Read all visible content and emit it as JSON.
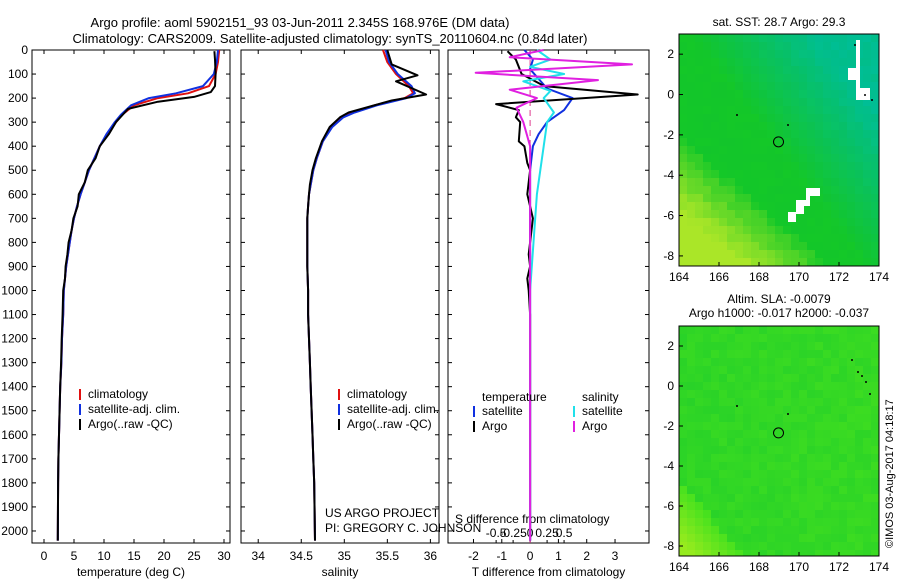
{
  "title_line1": "Argo profile: aoml 5902151_93 03-Jun-2011 2.345S 168.976E (DM data)",
  "title_line2": "Climatology: CARS2009. Satellite-adjusted climatology: synTS_20110604.nc (0.84d later)",
  "credit_line1": "US ARGO PROJECT",
  "credit_line2": "PI: GREGORY C. JOHNSON",
  "watermark": "©IMOS 03-Aug-2017 04:18:17",
  "colors": {
    "climatology": "#e01010",
    "satellite": "#1030e0",
    "argo": "#000000",
    "sal_sat": "#20e0ea",
    "sal_argo": "#e020e0"
  },
  "chart_data": [
    {
      "type": "line",
      "name": "temperature-profile",
      "xlabel": "temperature (deg C)",
      "xlim": [
        -2,
        31
      ],
      "ylim": [
        0,
        2050
      ],
      "xticks": [
        0,
        5,
        10,
        15,
        20,
        25,
        30
      ],
      "yticks": [
        0,
        100,
        200,
        300,
        400,
        500,
        600,
        700,
        800,
        900,
        1000,
        1100,
        1200,
        1300,
        1400,
        1500,
        1600,
        1700,
        1800,
        1900,
        2000
      ],
      "legend": [
        "climatology",
        "satellite-adj. clim.",
        "Argo(..raw -QC)"
      ],
      "series": [
        {
          "name": "climatology",
          "color": "#e01010",
          "x": [
            29.2,
            29.0,
            28.6,
            27.5,
            24,
            19,
            15,
            13,
            12,
            10.5,
            9.3,
            8.4,
            7.5,
            6.8,
            6.1,
            5.5,
            5.0,
            4.6,
            4.3,
            4.0,
            3.7,
            3.5,
            3.3,
            3.2,
            3.0,
            2.9,
            2.7,
            2.6,
            2.5,
            2.4,
            2.35,
            2.3
          ],
          "y": [
            0,
            50,
            100,
            150,
            180,
            200,
            230,
            270,
            300,
            350,
            400,
            450,
            500,
            550,
            600,
            650,
            700,
            750,
            800,
            850,
            900,
            950,
            1000,
            1100,
            1200,
            1300,
            1400,
            1500,
            1600,
            1700,
            1800,
            2040
          ]
        },
        {
          "name": "satellite",
          "color": "#1030e0",
          "x": [
            29.0,
            28.8,
            28.3,
            26.5,
            22,
            17.5,
            14.5,
            12.8,
            11.8,
            10.4,
            9.3,
            8.4,
            7.5,
            6.8,
            6.1,
            5.5,
            5.0,
            4.6,
            4.3,
            4.0,
            3.7,
            3.5,
            3.3,
            3.2,
            3.0,
            2.9,
            2.7,
            2.6,
            2.5,
            2.4,
            2.35,
            2.3
          ],
          "y": [
            0,
            50,
            100,
            150,
            180,
            200,
            230,
            270,
            300,
            350,
            400,
            450,
            500,
            550,
            600,
            650,
            700,
            750,
            800,
            850,
            900,
            950,
            1000,
            1100,
            1200,
            1300,
            1400,
            1500,
            1600,
            1700,
            1800,
            2040
          ]
        },
        {
          "name": "argo",
          "color": "#000000",
          "x": [
            28.4,
            28.5,
            28.6,
            28.5,
            27.8,
            25,
            19,
            14,
            12,
            10.8,
            9.3,
            8.6,
            7.3,
            6.8,
            5.8,
            5.6,
            4.9,
            4.6,
            4.1,
            3.9,
            3.6,
            3.5,
            3.2,
            3.1,
            2.95,
            2.85,
            2.7,
            2.6,
            2.5,
            2.4,
            2.35,
            2.3
          ],
          "y": [
            5,
            40,
            100,
            150,
            175,
            195,
            215,
            245,
            300,
            350,
            400,
            450,
            500,
            550,
            600,
            650,
            700,
            750,
            800,
            850,
            900,
            950,
            1000,
            1100,
            1200,
            1300,
            1400,
            1500,
            1600,
            1700,
            1800,
            2040
          ]
        }
      ]
    },
    {
      "type": "line",
      "name": "salinity-profile",
      "xlabel": "salinity",
      "xlim": [
        33.8,
        36.1
      ],
      "ylim": [
        0,
        2050
      ],
      "xticks": [
        34,
        34.5,
        35,
        35.5,
        36
      ],
      "xticklabels": [
        "34",
        "34.5",
        "35",
        "35.5",
        "36"
      ],
      "legend": [
        "climatology",
        "satellite-adj. clim.",
        "Argo(..raw -QC)"
      ],
      "series": [
        {
          "name": "climatology",
          "color": "#e01010",
          "x": [
            35.45,
            35.5,
            35.6,
            35.75,
            35.8,
            35.7,
            35.35,
            35.1,
            34.98,
            34.85,
            34.75,
            34.68,
            34.64,
            34.61,
            34.59,
            34.58,
            34.57,
            34.57,
            34.57,
            34.58,
            34.58,
            34.59,
            34.6,
            34.61,
            34.62,
            34.63,
            34.64,
            34.65,
            34.66
          ],
          "y": [
            0,
            50,
            100,
            150,
            180,
            200,
            230,
            260,
            280,
            320,
            380,
            450,
            500,
            560,
            600,
            650,
            700,
            800,
            900,
            1000,
            1100,
            1200,
            1300,
            1400,
            1500,
            1600,
            1700,
            1800,
            2040
          ]
        },
        {
          "name": "satellite",
          "color": "#1030e0",
          "x": [
            35.48,
            35.52,
            35.62,
            35.78,
            35.82,
            35.72,
            35.38,
            35.12,
            34.99,
            34.86,
            34.75,
            34.68,
            34.64,
            34.61,
            34.59,
            34.58,
            34.57,
            34.57,
            34.57,
            34.58,
            34.58,
            34.59,
            34.6,
            34.61,
            34.62,
            34.63,
            34.64,
            34.65,
            34.66
          ],
          "y": [
            0,
            50,
            100,
            150,
            180,
            200,
            230,
            260,
            280,
            320,
            380,
            450,
            500,
            560,
            600,
            650,
            700,
            800,
            900,
            1000,
            1100,
            1200,
            1300,
            1400,
            1500,
            1600,
            1700,
            1800,
            2040
          ]
        },
        {
          "name": "argo",
          "color": "#000000",
          "x": [
            35.5,
            35.55,
            35.85,
            35.6,
            35.95,
            35.55,
            35.3,
            35.05,
            34.95,
            34.83,
            34.74,
            34.67,
            34.63,
            34.6,
            34.59,
            34.58,
            34.57,
            34.57,
            34.57,
            34.58,
            34.58,
            34.59,
            34.6,
            34.61,
            34.62,
            34.63,
            34.64,
            34.65,
            34.66
          ],
          "y": [
            0,
            60,
            105,
            130,
            185,
            210,
            235,
            260,
            280,
            320,
            380,
            450,
            500,
            560,
            600,
            650,
            700,
            800,
            900,
            1000,
            1100,
            1200,
            1300,
            1400,
            1500,
            1600,
            1700,
            1800,
            2040
          ]
        }
      ]
    },
    {
      "type": "line",
      "name": "difference-profile",
      "xlabel_top": "S difference from climatology",
      "xlabel": "T difference from climatology",
      "xlim": [
        -2.9,
        4.2
      ],
      "ylim": [
        0,
        2050
      ],
      "xticks": [
        -2,
        -1,
        0,
        1,
        2,
        3
      ],
      "xticklabels": [
        "-2",
        "-1",
        "0",
        "1",
        "2",
        "3"
      ],
      "sticks": [
        -0.5,
        -0.25,
        0,
        0.25,
        0.5
      ],
      "sticklabels": [
        "-0.5",
        "-0.25",
        "0",
        "0.25",
        "0.5"
      ],
      "legend_headers": [
        "temperature",
        "salinity"
      ],
      "legend": [
        "satellite",
        "Argo",
        "satellite",
        "Argo"
      ],
      "series": [
        {
          "name": "T satellite",
          "color": "#1030e0",
          "x": [
            -0.2,
            0.1,
            0,
            0.3,
            0.6,
            1.5,
            1.2,
            0.6,
            0.3,
            0.1,
            0.0,
            0.0,
            0.0,
            0.0,
            0.0,
            0.0,
            0.0,
            0.0
          ],
          "y": [
            0,
            40,
            80,
            120,
            160,
            200,
            250,
            300,
            350,
            400,
            500,
            600,
            800,
            1000,
            1200,
            1500,
            1800,
            2040
          ]
        },
        {
          "name": "T argo",
          "color": "#000000",
          "x": [
            -0.8,
            -0.5,
            -0.3,
            0.5,
            3.8,
            -1.2,
            -0.4,
            -0.5,
            -0.35,
            -0.4,
            -0.2,
            -0.1,
            0.0,
            -0.1,
            0.1,
            0.0,
            -0.05,
            0.0,
            -0.1,
            -0.05,
            0.0,
            0.0,
            0.0,
            0.0,
            0.0
          ],
          "y": [
            5,
            40,
            100,
            150,
            185,
            225,
            250,
            280,
            300,
            380,
            400,
            470,
            500,
            600,
            700,
            800,
            850,
            900,
            950,
            1000,
            1100,
            1200,
            1500,
            1800,
            2040
          ]
        },
        {
          "name": "S satellite",
          "color": "#20e0ea",
          "x": [
            0.1,
            0.3,
            0.0,
            0.5,
            -0.1,
            0.3,
            0.2,
            0.35,
            0.25,
            0.2,
            0.15,
            0.1,
            0.05,
            0.0,
            0.0,
            0.0
          ],
          "y": [
            0,
            40,
            70,
            100,
            130,
            170,
            200,
            260,
            300,
            400,
            500,
            600,
            800,
            1000,
            1500,
            2040
          ]
        },
        {
          "name": "S argo",
          "color": "#e020e0",
          "x": [
            0.2,
            -0.3,
            1.5,
            -0.8,
            1.0,
            -0.3,
            0.1,
            -0.2,
            -0.1,
            0.0,
            0.0,
            0.0,
            0.0
          ],
          "y": [
            0,
            30,
            60,
            95,
            125,
            165,
            200,
            240,
            300,
            400,
            600,
            1000,
            2040
          ]
        }
      ]
    },
    {
      "type": "heatmap",
      "name": "sst-map",
      "title": "sat. SST: 28.7 Argo: 29.3",
      "xlim": [
        164,
        174
      ],
      "ylim": [
        -8.5,
        3
      ],
      "xticks": [
        164,
        166,
        168,
        170,
        172,
        174
      ],
      "yticks": [
        2,
        0,
        -2,
        -4,
        -6,
        -8
      ],
      "profile_marker": [
        168.976,
        -2.345
      ]
    },
    {
      "type": "heatmap",
      "name": "sla-map",
      "title": "Altim. SLA: -0.0079",
      "subtitle": "Argo h1000: -0.017 h2000: -0.037",
      "xlim": [
        164,
        174
      ],
      "ylim": [
        -8.5,
        3
      ],
      "xticks": [
        164,
        166,
        168,
        170,
        172,
        174
      ],
      "yticks": [
        2,
        0,
        -2,
        -4,
        -6,
        -8
      ],
      "profile_marker": [
        168.976,
        -2.345
      ]
    }
  ]
}
